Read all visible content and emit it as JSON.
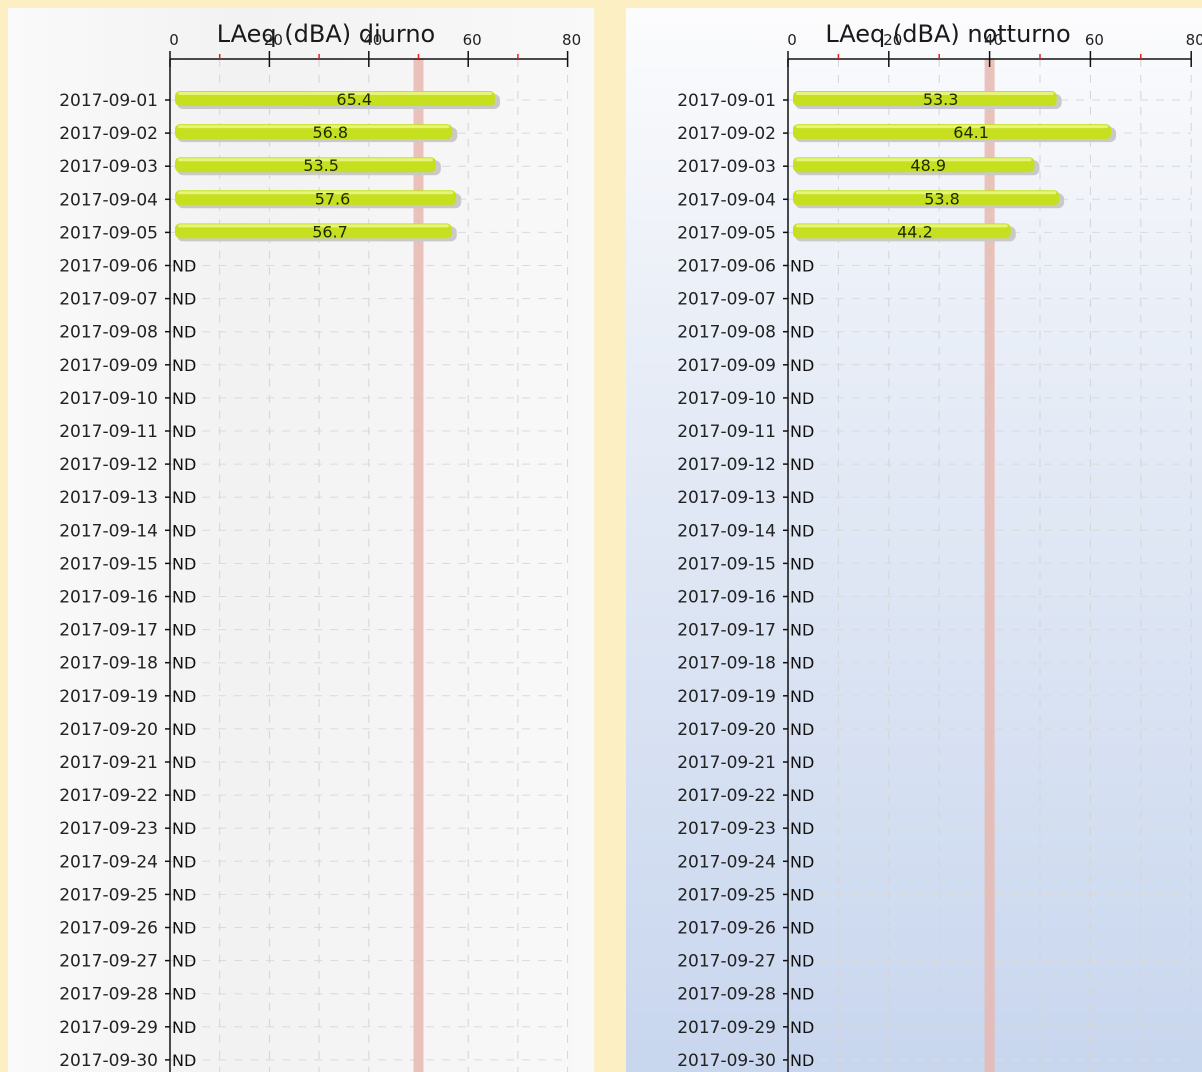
{
  "chart_data": [
    {
      "type": "bar",
      "orientation": "horizontal",
      "title": "LAeq (dBA) diurno",
      "xlim": [
        0,
        80
      ],
      "ticks": [
        0,
        20,
        40,
        60,
        80
      ],
      "threshold": 50,
      "grid": true,
      "bar_color": "#c6e020",
      "threshold_color": "#e8b8b0",
      "categories": [
        "2017-09-01",
        "2017-09-02",
        "2017-09-03",
        "2017-09-04",
        "2017-09-05",
        "2017-09-06",
        "2017-09-07",
        "2017-09-08",
        "2017-09-09",
        "2017-09-10",
        "2017-09-11",
        "2017-09-12",
        "2017-09-13",
        "2017-09-14",
        "2017-09-15",
        "2017-09-16",
        "2017-09-17",
        "2017-09-18",
        "2017-09-19",
        "2017-09-20",
        "2017-09-21",
        "2017-09-22",
        "2017-09-23",
        "2017-09-24",
        "2017-09-25",
        "2017-09-26",
        "2017-09-27",
        "2017-09-28",
        "2017-09-29",
        "2017-09-30"
      ],
      "values": [
        65.4,
        56.8,
        53.5,
        57.6,
        56.7,
        null,
        null,
        null,
        null,
        null,
        null,
        null,
        null,
        null,
        null,
        null,
        null,
        null,
        null,
        null,
        null,
        null,
        null,
        null,
        null,
        null,
        null,
        null,
        null,
        null
      ],
      "missing_label": "ND"
    },
    {
      "type": "bar",
      "orientation": "horizontal",
      "title": "LAeq (dBA) notturno",
      "xlim": [
        0,
        80
      ],
      "ticks": [
        0,
        20,
        40,
        60,
        80
      ],
      "threshold": 40,
      "grid": true,
      "bar_color": "#c6e020",
      "threshold_color": "#e8b8b0",
      "categories": [
        "2017-09-01",
        "2017-09-02",
        "2017-09-03",
        "2017-09-04",
        "2017-09-05",
        "2017-09-06",
        "2017-09-07",
        "2017-09-08",
        "2017-09-09",
        "2017-09-10",
        "2017-09-11",
        "2017-09-12",
        "2017-09-13",
        "2017-09-14",
        "2017-09-15",
        "2017-09-16",
        "2017-09-17",
        "2017-09-18",
        "2017-09-19",
        "2017-09-20",
        "2017-09-21",
        "2017-09-22",
        "2017-09-23",
        "2017-09-24",
        "2017-09-25",
        "2017-09-26",
        "2017-09-27",
        "2017-09-28",
        "2017-09-29",
        "2017-09-30"
      ],
      "values": [
        53.3,
        64.1,
        48.9,
        53.8,
        44.2,
        null,
        null,
        null,
        null,
        null,
        null,
        null,
        null,
        null,
        null,
        null,
        null,
        null,
        null,
        null,
        null,
        null,
        null,
        null,
        null,
        null,
        null,
        null,
        null,
        null
      ],
      "missing_label": "ND"
    }
  ]
}
